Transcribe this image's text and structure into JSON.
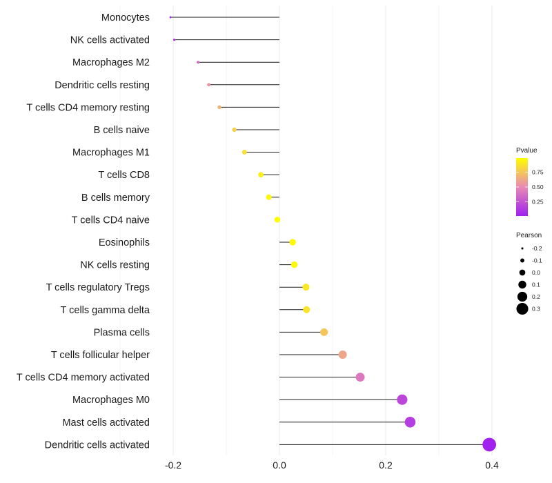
{
  "chart_data": {
    "type": "lollipop",
    "title": "",
    "xlabel": "",
    "ylabel": "",
    "xlim": [
      -0.23,
      0.41
    ],
    "x_ticks": [
      -0.2,
      0.0,
      0.2,
      0.4
    ],
    "x_tick_labels": [
      "-0.2",
      "0.0",
      "0.2",
      "0.4"
    ],
    "grid": "vertical",
    "categories": [
      "Monocytes",
      "NK cells activated",
      "Macrophages M2",
      "Dendritic cells resting",
      "T cells CD4 memory resting",
      "B cells naive",
      "Macrophages M1",
      "T cells CD8",
      "B cells memory",
      "T cells CD4 naive",
      "Eosinophils",
      "NK cells resting",
      "T cells regulatory  Tregs ",
      "T cells gamma delta",
      "Plasma cells",
      "T cells follicular helper",
      "T cells CD4 memory activated",
      "Macrophages M0",
      "Mast cells activated",
      "Dendritic cells activated"
    ],
    "values": [
      -0.205,
      -0.198,
      -0.153,
      -0.133,
      -0.113,
      -0.085,
      -0.066,
      -0.035,
      -0.02,
      -0.004,
      0.025,
      0.028,
      0.05,
      0.051,
      0.084,
      0.119,
      0.152,
      0.231,
      0.246,
      0.395
    ],
    "pvalues": [
      0.02,
      0.05,
      0.38,
      0.55,
      0.68,
      0.8,
      0.86,
      0.93,
      0.96,
      0.99,
      0.98,
      0.97,
      0.9,
      0.88,
      0.75,
      0.62,
      0.42,
      0.18,
      0.14,
      0.01
    ],
    "legend_pvalue": {
      "title": "Pvalue",
      "ticks": [
        0.75,
        0.5,
        0.25
      ],
      "labels": [
        "0.75",
        "0.50",
        "0.25"
      ],
      "color_low": "#a020f0",
      "color_mid": "#e88ab4",
      "color_high": "#ffff00"
    },
    "legend_pearson": {
      "title": "Pearson",
      "values": [
        -0.2,
        -0.1,
        0.0,
        0.1,
        0.2,
        0.3
      ],
      "labels": [
        "-0.2",
        "-0.1",
        "0.0",
        "0.1",
        "0.2",
        "0.3"
      ]
    },
    "colors": {
      "stem": "#1a1a1a",
      "grid": "#ebebeb",
      "legend_dot": "#000000"
    }
  }
}
